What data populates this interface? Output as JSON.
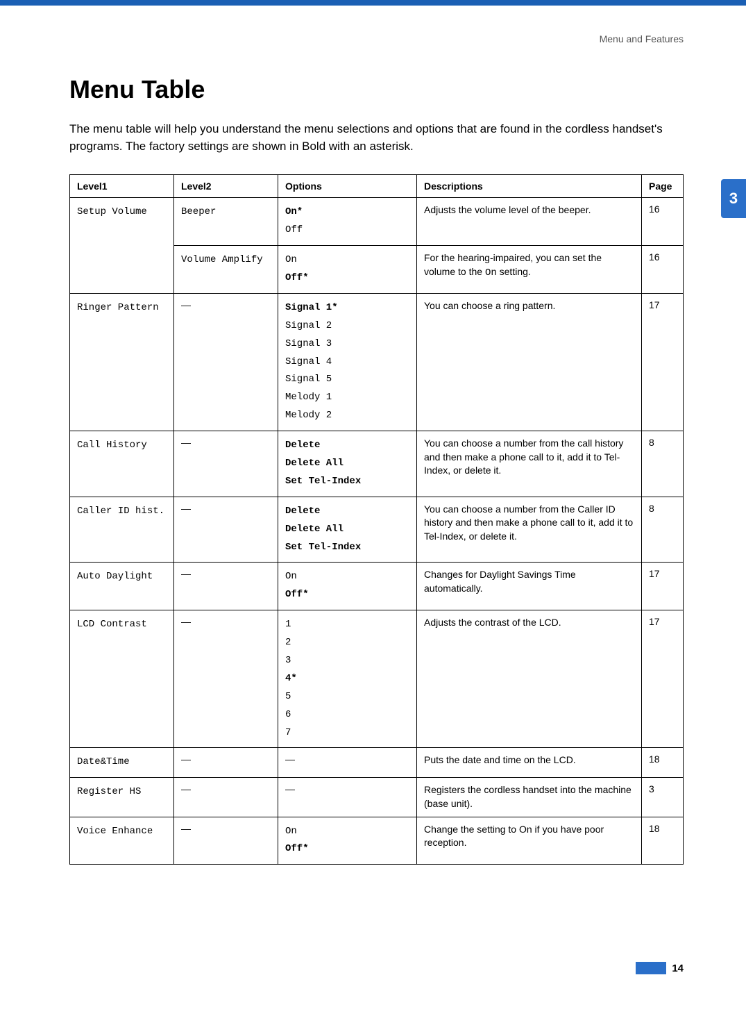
{
  "breadcrumb": "Menu and Features",
  "title": "Menu Table",
  "intro": "The menu table will help you understand the menu selections and options that are found in the cordless handset's programs. The factory settings are shown in Bold with an asterisk.",
  "side_tab": "3",
  "page_number": "14",
  "colors": {
    "topbar": "#1a5fb4",
    "side_tab_bg": "#2a6fc9",
    "side_tab_fg": "#ffffff",
    "border": "#000000",
    "breadcrumb": "#555555"
  },
  "columns": {
    "level1": "Level1",
    "level2": "Level2",
    "options": "Options",
    "descriptions": "Descriptions",
    "page": "Page"
  },
  "rows": {
    "setup_volume": {
      "level1": "Setup Volume",
      "beeper": {
        "level2": "Beeper",
        "opt_on": "On*",
        "opt_off": "Off",
        "desc": "Adjusts the volume level of the beeper.",
        "page": "16"
      },
      "volume_amplify": {
        "level2": "Volume Amplify",
        "opt_on": "On",
        "opt_off": "Off*",
        "desc_pre": "For the hearing-impaired, you can set the volume to the ",
        "desc_mono": "On",
        "desc_post": " setting.",
        "page": "16"
      }
    },
    "ringer_pattern": {
      "level1": "Ringer Pattern",
      "level2": "—",
      "opts": {
        "s1": "Signal 1*",
        "s2": "Signal 2",
        "s3": "Signal 3",
        "s4": "Signal 4",
        "s5": "Signal 5",
        "m1": "Melody 1",
        "m2": "Melody 2"
      },
      "desc": "You can choose a ring pattern.",
      "page": "17"
    },
    "call_history": {
      "level1": "Call History",
      "level2": "—",
      "opts": {
        "d": "Delete",
        "da": "Delete All",
        "st": "Set Tel-Index"
      },
      "desc": "You can choose a number from the call history and then make a phone call to it, add it to Tel-Index, or delete it.",
      "page": "8"
    },
    "caller_id": {
      "level1": "Caller ID hist.",
      "level2": "—",
      "opts": {
        "d": "Delete",
        "da": "Delete All",
        "st": "Set Tel-Index"
      },
      "desc": "You can choose a number from the Caller ID history and then make a phone call to it, add it to Tel-Index, or delete it.",
      "page": "8"
    },
    "auto_daylight": {
      "level1": "Auto Daylight",
      "level2": "—",
      "opts": {
        "on": "On",
        "off": "Off*"
      },
      "desc": "Changes for Daylight Savings Time automatically.",
      "page": "17"
    },
    "lcd_contrast": {
      "level1": "LCD Contrast",
      "level2": "—",
      "opts": {
        "o1": "1",
        "o2": "2",
        "o3": "3",
        "o4": "4*",
        "o5": "5",
        "o6": "6",
        "o7": "7"
      },
      "desc": "Adjusts the contrast of the LCD.",
      "page": "17"
    },
    "date_time": {
      "level1": "Date&Time",
      "level2": "—",
      "options": "—",
      "desc": "Puts the date and time on the LCD.",
      "page": "18"
    },
    "register_hs": {
      "level1": "Register HS",
      "level2": "—",
      "options": "—",
      "desc": "Registers the cordless handset into the machine (base unit).",
      "page": "3"
    },
    "voice_enhance": {
      "level1": "Voice Enhance",
      "level2": "—",
      "opts": {
        "on": "On",
        "off": "Off*"
      },
      "desc": "Change the setting to On if you have poor reception.",
      "page": "18"
    }
  }
}
